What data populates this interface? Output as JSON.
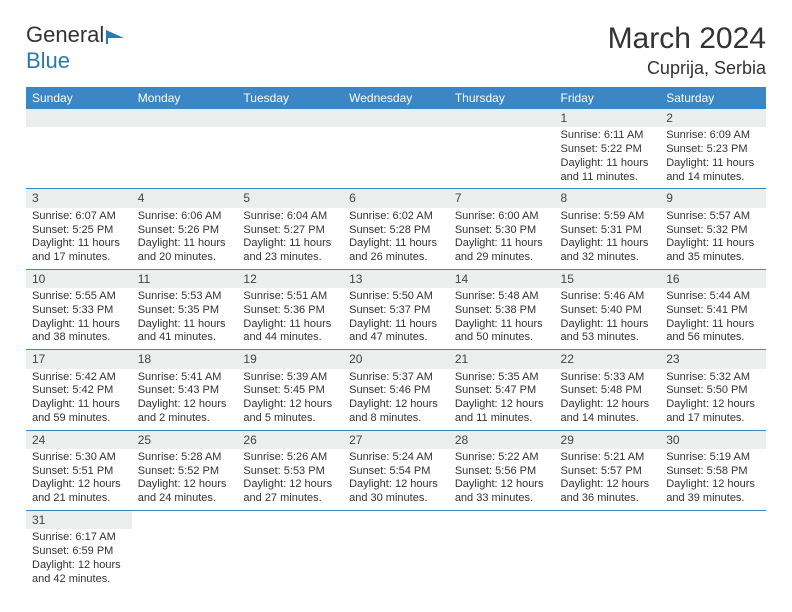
{
  "logo": {
    "text1": "General",
    "text2": "Blue",
    "text1_color": "#333333",
    "text2_color": "#2a7ab0",
    "flag_color": "#2a7ab0"
  },
  "title": {
    "month": "March 2024",
    "location": "Cuprija, Serbia",
    "month_fontsize": 30,
    "location_fontsize": 18
  },
  "calendar": {
    "header_bg": "#3b86c4",
    "header_color": "#ffffff",
    "cell_border_color": "#3b86c4",
    "daynum_bg": "#eceded",
    "daynum_color": "#444444",
    "body_color": "#333333",
    "background": "#ffffff",
    "days": [
      "Sunday",
      "Monday",
      "Tuesday",
      "Wednesday",
      "Thursday",
      "Friday",
      "Saturday"
    ],
    "weeks": [
      [
        null,
        null,
        null,
        null,
        null,
        {
          "n": "1",
          "sunrise": "6:11 AM",
          "sunset": "5:22 PM",
          "day_h": "11",
          "day_m": "11"
        },
        {
          "n": "2",
          "sunrise": "6:09 AM",
          "sunset": "5:23 PM",
          "day_h": "11",
          "day_m": "14"
        }
      ],
      [
        {
          "n": "3",
          "sunrise": "6:07 AM",
          "sunset": "5:25 PM",
          "day_h": "11",
          "day_m": "17"
        },
        {
          "n": "4",
          "sunrise": "6:06 AM",
          "sunset": "5:26 PM",
          "day_h": "11",
          "day_m": "20"
        },
        {
          "n": "5",
          "sunrise": "6:04 AM",
          "sunset": "5:27 PM",
          "day_h": "11",
          "day_m": "23"
        },
        {
          "n": "6",
          "sunrise": "6:02 AM",
          "sunset": "5:28 PM",
          "day_h": "11",
          "day_m": "26"
        },
        {
          "n": "7",
          "sunrise": "6:00 AM",
          "sunset": "5:30 PM",
          "day_h": "11",
          "day_m": "29"
        },
        {
          "n": "8",
          "sunrise": "5:59 AM",
          "sunset": "5:31 PM",
          "day_h": "11",
          "day_m": "32"
        },
        {
          "n": "9",
          "sunrise": "5:57 AM",
          "sunset": "5:32 PM",
          "day_h": "11",
          "day_m": "35"
        }
      ],
      [
        {
          "n": "10",
          "sunrise": "5:55 AM",
          "sunset": "5:33 PM",
          "day_h": "11",
          "day_m": "38"
        },
        {
          "n": "11",
          "sunrise": "5:53 AM",
          "sunset": "5:35 PM",
          "day_h": "11",
          "day_m": "41"
        },
        {
          "n": "12",
          "sunrise": "5:51 AM",
          "sunset": "5:36 PM",
          "day_h": "11",
          "day_m": "44"
        },
        {
          "n": "13",
          "sunrise": "5:50 AM",
          "sunset": "5:37 PM",
          "day_h": "11",
          "day_m": "47"
        },
        {
          "n": "14",
          "sunrise": "5:48 AM",
          "sunset": "5:38 PM",
          "day_h": "11",
          "day_m": "50"
        },
        {
          "n": "15",
          "sunrise": "5:46 AM",
          "sunset": "5:40 PM",
          "day_h": "11",
          "day_m": "53"
        },
        {
          "n": "16",
          "sunrise": "5:44 AM",
          "sunset": "5:41 PM",
          "day_h": "11",
          "day_m": "56"
        }
      ],
      [
        {
          "n": "17",
          "sunrise": "5:42 AM",
          "sunset": "5:42 PM",
          "day_h": "11",
          "day_m": "59"
        },
        {
          "n": "18",
          "sunrise": "5:41 AM",
          "sunset": "5:43 PM",
          "day_h": "12",
          "day_m": "2"
        },
        {
          "n": "19",
          "sunrise": "5:39 AM",
          "sunset": "5:45 PM",
          "day_h": "12",
          "day_m": "5"
        },
        {
          "n": "20",
          "sunrise": "5:37 AM",
          "sunset": "5:46 PM",
          "day_h": "12",
          "day_m": "8"
        },
        {
          "n": "21",
          "sunrise": "5:35 AM",
          "sunset": "5:47 PM",
          "day_h": "12",
          "day_m": "11"
        },
        {
          "n": "22",
          "sunrise": "5:33 AM",
          "sunset": "5:48 PM",
          "day_h": "12",
          "day_m": "14"
        },
        {
          "n": "23",
          "sunrise": "5:32 AM",
          "sunset": "5:50 PM",
          "day_h": "12",
          "day_m": "17"
        }
      ],
      [
        {
          "n": "24",
          "sunrise": "5:30 AM",
          "sunset": "5:51 PM",
          "day_h": "12",
          "day_m": "21"
        },
        {
          "n": "25",
          "sunrise": "5:28 AM",
          "sunset": "5:52 PM",
          "day_h": "12",
          "day_m": "24"
        },
        {
          "n": "26",
          "sunrise": "5:26 AM",
          "sunset": "5:53 PM",
          "day_h": "12",
          "day_m": "27"
        },
        {
          "n": "27",
          "sunrise": "5:24 AM",
          "sunset": "5:54 PM",
          "day_h": "12",
          "day_m": "30"
        },
        {
          "n": "28",
          "sunrise": "5:22 AM",
          "sunset": "5:56 PM",
          "day_h": "12",
          "day_m": "33"
        },
        {
          "n": "29",
          "sunrise": "5:21 AM",
          "sunset": "5:57 PM",
          "day_h": "12",
          "day_m": "36"
        },
        {
          "n": "30",
          "sunrise": "5:19 AM",
          "sunset": "5:58 PM",
          "day_h": "12",
          "day_m": "39"
        }
      ],
      [
        {
          "n": "31",
          "sunrise": "6:17 AM",
          "sunset": "6:59 PM",
          "day_h": "12",
          "day_m": "42"
        },
        null,
        null,
        null,
        null,
        null,
        null
      ]
    ]
  },
  "labels": {
    "sunrise_prefix": "Sunrise: ",
    "sunset_prefix": "Sunset: ",
    "daylight_prefix": "Daylight: ",
    "hours_word": " hours",
    "and_word": "and ",
    "minutes_word": " minutes."
  }
}
